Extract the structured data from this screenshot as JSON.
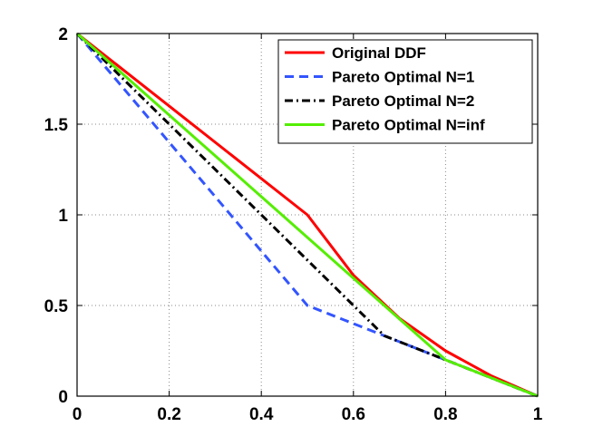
{
  "chart_data": {
    "type": "line",
    "title": "",
    "xlabel": "",
    "ylabel": "",
    "xlim": [
      0,
      1
    ],
    "ylim": [
      0,
      2
    ],
    "grid": true,
    "legend_position": "top-right",
    "xticks": [
      0,
      0.2,
      0.4,
      0.6,
      0.8,
      1
    ],
    "xtick_labels": [
      "0",
      "0.2",
      "0.4",
      "0.6",
      "0.8",
      "1"
    ],
    "yticks": [
      0,
      0.5,
      1,
      1.5,
      2
    ],
    "ytick_labels": [
      "0",
      "0.5",
      "1",
      "1.5",
      "2"
    ],
    "series": [
      {
        "name": "Original DDF",
        "color": "#ff0000",
        "style": "solid",
        "x": [
          0,
          0.5,
          0.6,
          0.7,
          0.8,
          0.9,
          1.0
        ],
        "y": [
          2,
          1,
          0.667,
          0.429,
          0.25,
          0.111,
          0
        ]
      },
      {
        "name": "Pareto Optimal N=1",
        "color": "#3355ff",
        "style": "dashed",
        "x": [
          0,
          0.5,
          0.667,
          0.8,
          1.0
        ],
        "y": [
          2,
          0.5,
          0.333,
          0.2,
          0
        ]
      },
      {
        "name": "Pareto Optimal N=2",
        "color": "#000000",
        "style": "dashdot",
        "x": [
          0,
          0.667,
          0.8,
          1.0
        ],
        "y": [
          2,
          0.333,
          0.2,
          0
        ]
      },
      {
        "name": "Pareto Optimal N=inf",
        "color": "#55ee00",
        "style": "solid",
        "x": [
          0,
          0.667,
          0.8,
          1.0
        ],
        "y": [
          2,
          0.5,
          0.2,
          0
        ]
      }
    ]
  }
}
